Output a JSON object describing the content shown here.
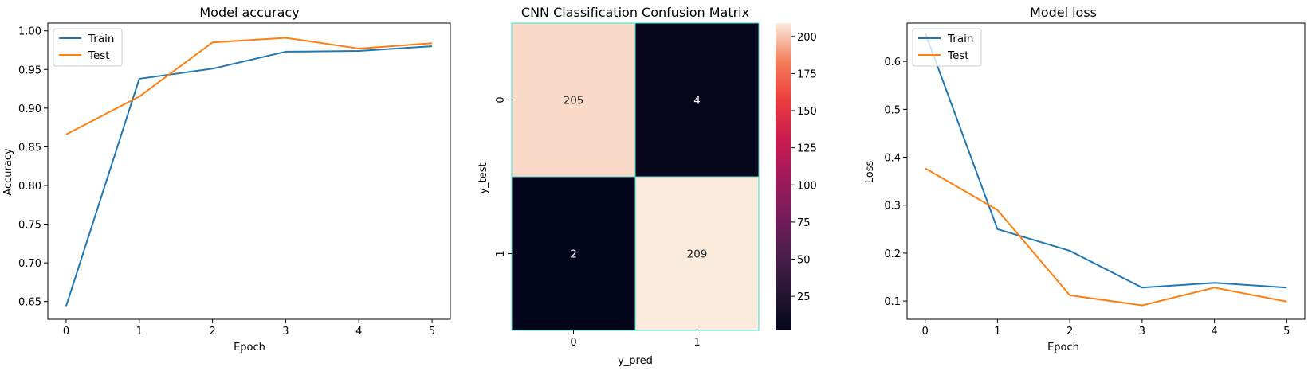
{
  "chart_data": [
    {
      "id": "acc",
      "type": "line",
      "title": "Model accuracy",
      "xlabel": "Epoch",
      "ylabel": "Accuracy",
      "x": [
        0,
        1,
        2,
        3,
        4,
        5
      ],
      "xlim": [
        -0.25,
        5.25
      ],
      "ylim": [
        0.627,
        1.01
      ],
      "xticks": [
        0,
        1,
        2,
        3,
        4,
        5
      ],
      "yticks": [
        0.65,
        0.7,
        0.75,
        0.8,
        0.85,
        0.9,
        0.95,
        1.0
      ],
      "ytick_labels": [
        "0.65",
        "0.70",
        "0.75",
        "0.80",
        "0.85",
        "0.90",
        "0.95",
        "1.00"
      ],
      "legend_position": "upper-left",
      "series": [
        {
          "name": "Train",
          "color": "#1f77b4",
          "values": [
            0.644,
            0.938,
            0.951,
            0.973,
            0.974,
            0.98
          ]
        },
        {
          "name": "Test",
          "color": "#ff7f0e",
          "values": [
            0.866,
            0.915,
            0.985,
            0.991,
            0.977,
            0.984
          ]
        }
      ]
    },
    {
      "id": "cm",
      "type": "heatmap",
      "title": "CNN Classification Confusion Matrix",
      "xlabel": "y_pred",
      "ylabel": "y_test",
      "row_labels": [
        "0",
        "1"
      ],
      "col_labels": [
        "0",
        "1"
      ],
      "matrix": [
        [
          205,
          4
        ],
        [
          2,
          209
        ]
      ],
      "cell_border_color": "#40e0d0",
      "colorbar": {
        "ticks": [
          25,
          50,
          75,
          100,
          125,
          150,
          175,
          200
        ],
        "tick_labels": [
          "25",
          "50",
          "75",
          "100",
          "125",
          "150",
          "175",
          "200"
        ],
        "range": [
          2,
          209
        ],
        "colormap": "rocket"
      }
    },
    {
      "id": "loss",
      "type": "line",
      "title": "Model loss",
      "xlabel": "Epoch",
      "ylabel": "Loss",
      "x": [
        0,
        1,
        2,
        3,
        4,
        5
      ],
      "xlim": [
        -0.25,
        5.25
      ],
      "ylim": [
        0.062,
        0.68
      ],
      "xticks": [
        0,
        1,
        2,
        3,
        4,
        5
      ],
      "yticks": [
        0.1,
        0.2,
        0.3,
        0.4,
        0.5,
        0.6
      ],
      "ytick_labels": [
        "0.1",
        "0.2",
        "0.3",
        "0.4",
        "0.5",
        "0.6"
      ],
      "legend_position": "upper-left",
      "series": [
        {
          "name": "Train",
          "color": "#1f77b4",
          "values": [
            0.66,
            0.25,
            0.205,
            0.128,
            0.138,
            0.128
          ]
        },
        {
          "name": "Test",
          "color": "#ff7f0e",
          "values": [
            0.377,
            0.29,
            0.112,
            0.091,
            0.128,
            0.099
          ]
        }
      ]
    }
  ]
}
